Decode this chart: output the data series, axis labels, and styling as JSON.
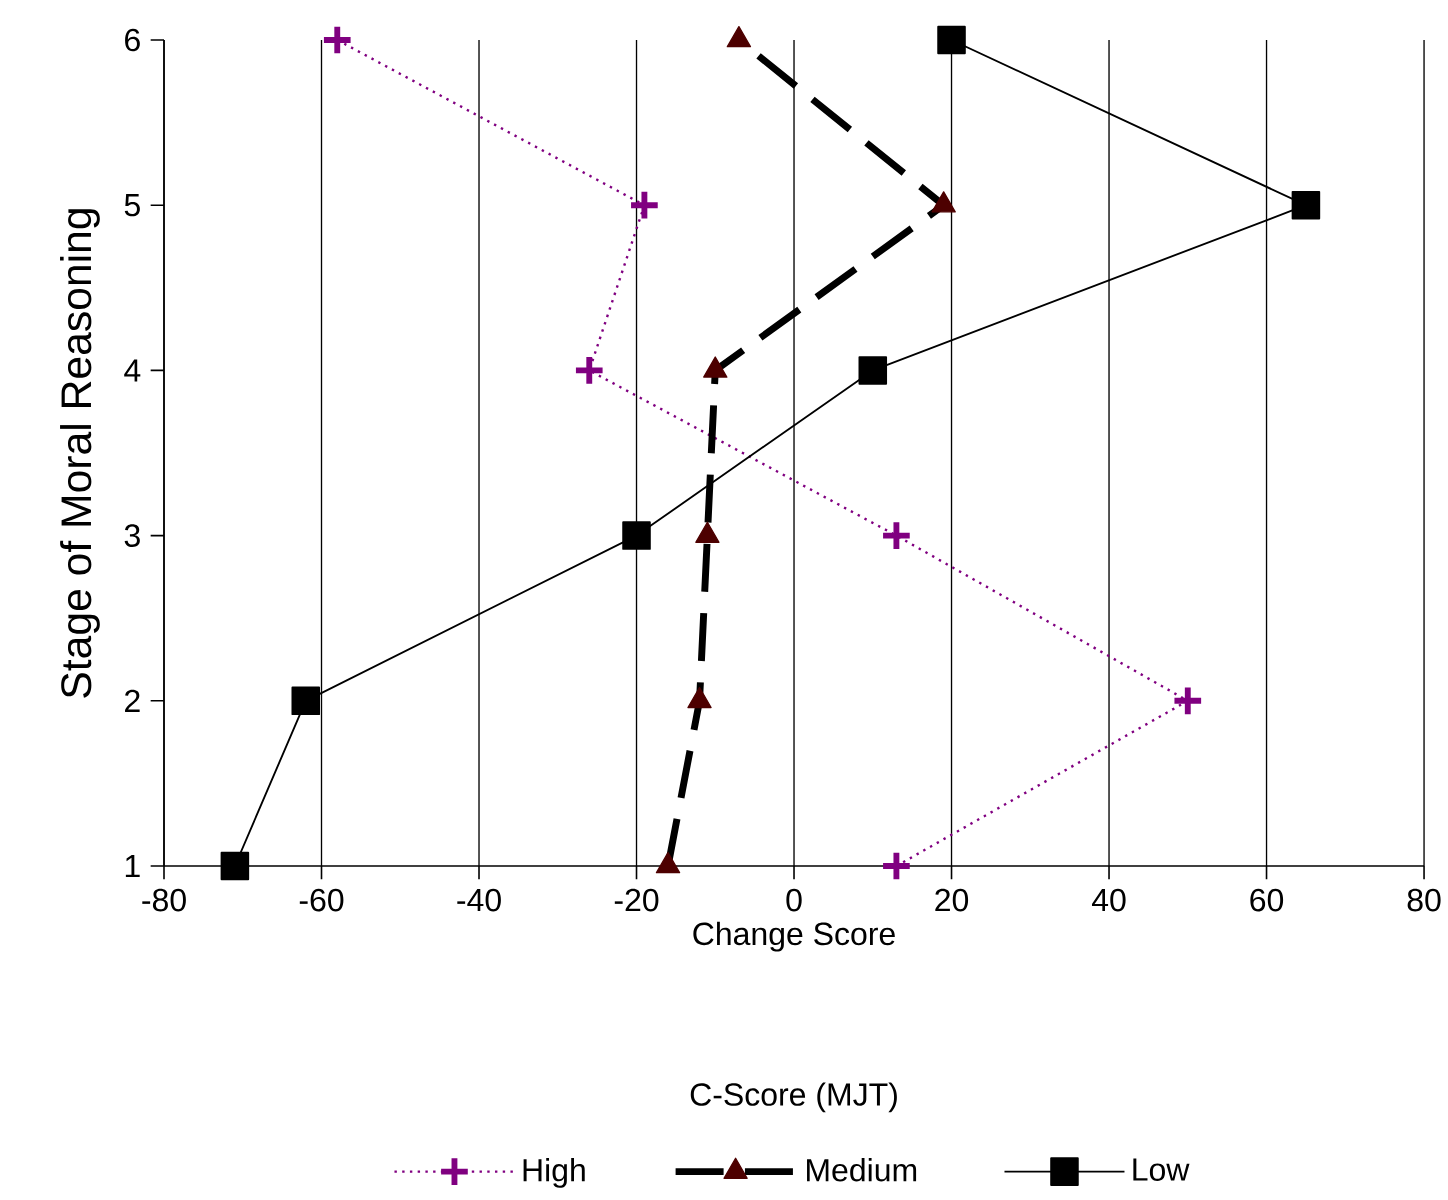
{
  "chart_data": {
    "type": "line",
    "xlabel": "Change Score",
    "ylabel": "Stage of Moral Reasoning",
    "legend_title": "C-Score (MJT)",
    "xlim": [
      -80,
      80
    ],
    "xticks": [
      -80,
      -60,
      -40,
      -20,
      0,
      20,
      40,
      60,
      80
    ],
    "ylim": [
      1,
      6
    ],
    "yticks": [
      1,
      2,
      3,
      4,
      5,
      6
    ],
    "grid": "x",
    "legend": "bottom",
    "series": [
      {
        "name": "High",
        "color": "#800080",
        "marker": "cross",
        "line_style": "dotted",
        "x": [
          13,
          50,
          13,
          -26,
          -19,
          -58
        ],
        "values": [
          1,
          2,
          3,
          4,
          5,
          6
        ]
      },
      {
        "name": "Medium",
        "color": "#4d0000",
        "marker": "triangle",
        "line_style": "dashed",
        "x": [
          -16,
          -12,
          -11,
          -10,
          19,
          -7
        ],
        "values": [
          1,
          2,
          3,
          4,
          5,
          6
        ]
      },
      {
        "name": "Low",
        "color": "#000000",
        "marker": "square",
        "line_style": "solid",
        "x": [
          -71,
          -62,
          -20,
          10,
          65,
          20
        ],
        "values": [
          1,
          2,
          3,
          4,
          5,
          6
        ]
      }
    ]
  }
}
